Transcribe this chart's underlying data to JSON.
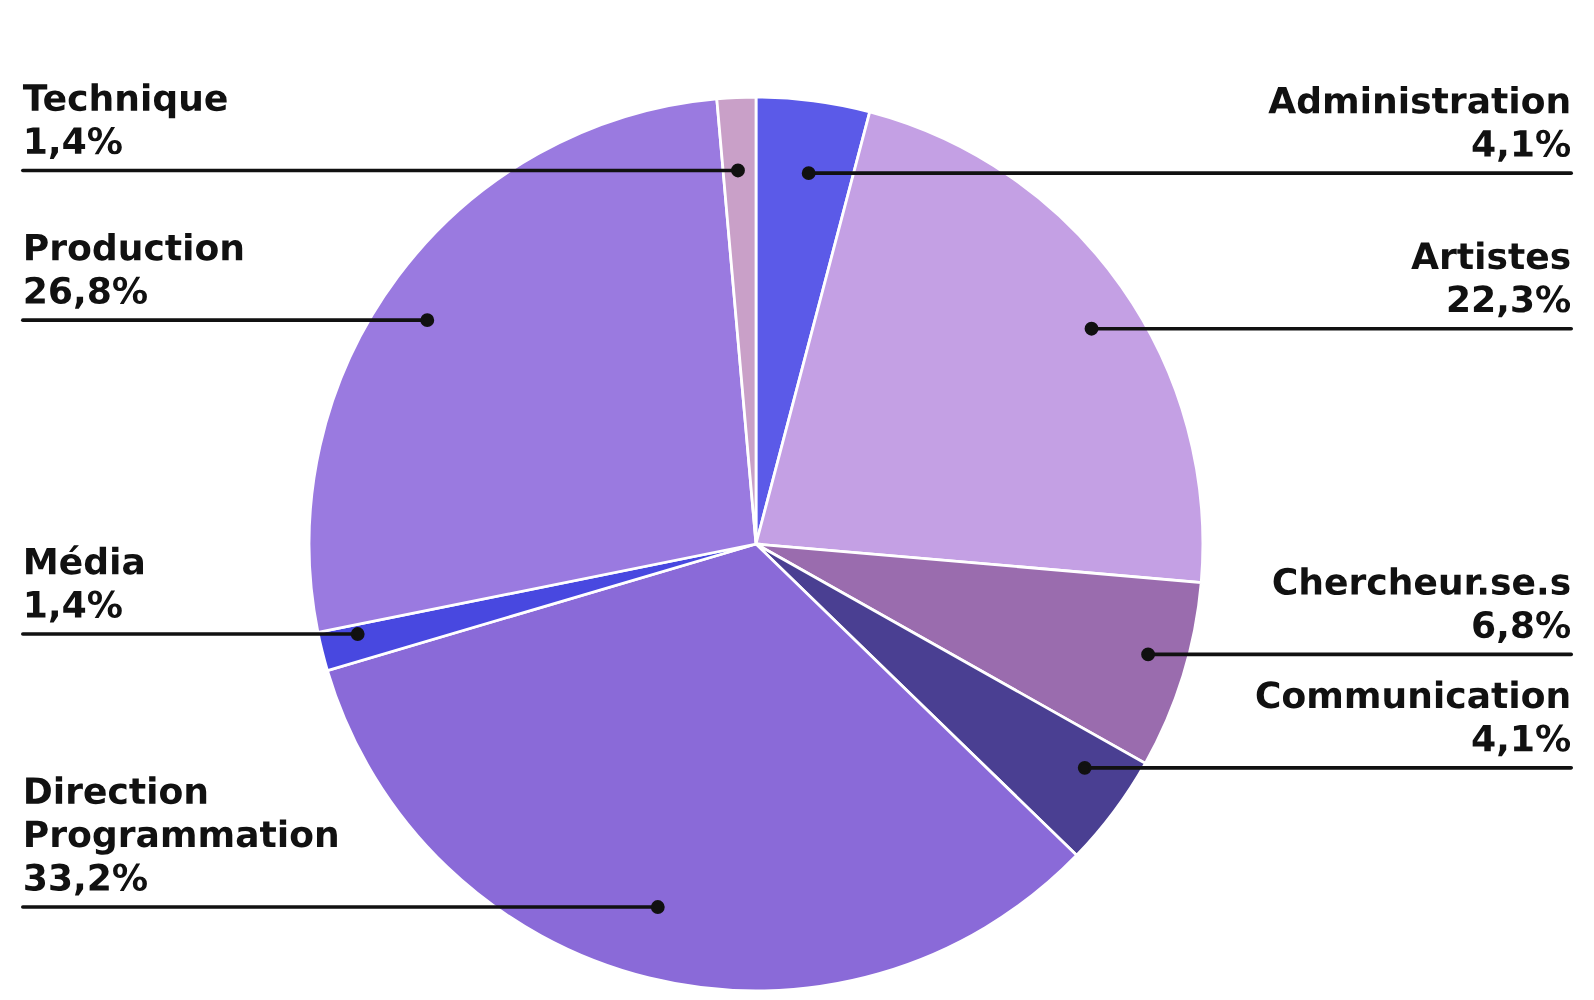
{
  "chart_data": {
    "type": "pie",
    "categories": [
      "Administration",
      "Artistes",
      "Chercheur.se.s",
      "Communication",
      "Direction Programmation",
      "Média",
      "Production",
      "Technique"
    ],
    "values": [
      4.1,
      22.3,
      6.8,
      4.1,
      33.2,
      1.4,
      26.8,
      1.4
    ],
    "value_labels": [
      "4,1%",
      "22,3%",
      "6,8%",
      "4,1%",
      "33,2%",
      "1,4%",
      "26,8%",
      "1,4%"
    ],
    "colors": [
      "#5b5ae8",
      "#c4a0e4",
      "#9a6cae",
      "#4a3f92",
      "#8a6ad8",
      "#4848e0",
      "#9a7ae0",
      "#c9a0c8"
    ],
    "legend": false
  }
}
